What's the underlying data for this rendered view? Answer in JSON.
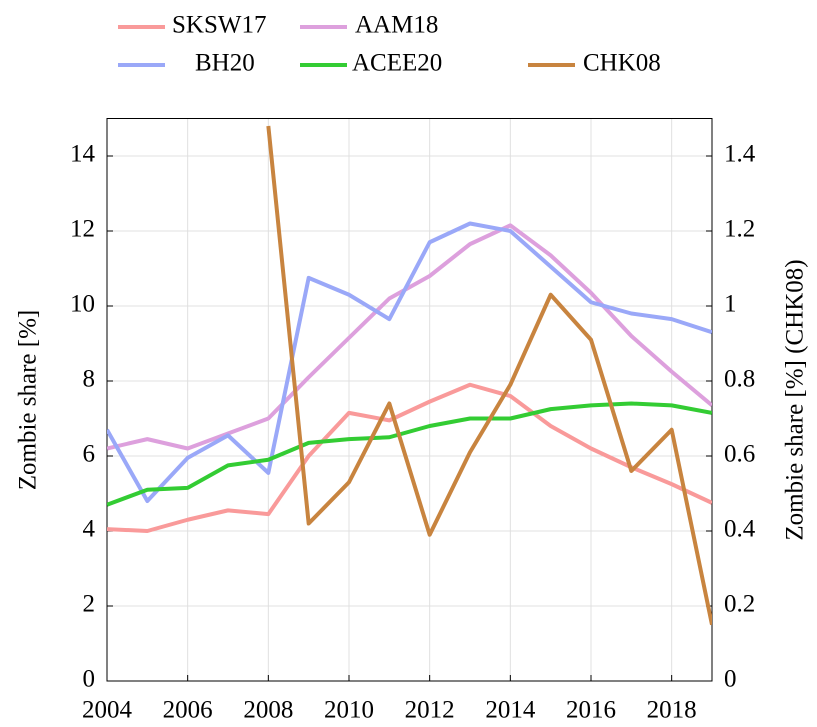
{
  "chart_data": {
    "type": "line",
    "x": [
      2004,
      2005,
      2006,
      2007,
      2008,
      2009,
      2010,
      2011,
      2012,
      2013,
      2014,
      2015,
      2016,
      2017,
      2018,
      2019
    ],
    "series": [
      {
        "name": "SKSW17",
        "color": "#f99a9a",
        "values": [
          4.05,
          4.0,
          4.3,
          4.55,
          4.45,
          6.0,
          7.15,
          6.95,
          7.45,
          7.9,
          7.6,
          6.8,
          6.2,
          5.7,
          5.25,
          4.75
        ]
      },
      {
        "name": "AAM18",
        "color": "#dda0dd",
        "values": [
          6.2,
          6.45,
          6.2,
          6.6,
          7.0,
          8.1,
          9.15,
          10.2,
          10.8,
          11.65,
          12.15,
          11.35,
          10.35,
          9.2,
          8.25,
          7.35
        ]
      },
      {
        "name": "BH20",
        "color": "#9aa8f8",
        "values": [
          6.7,
          4.8,
          5.95,
          6.55,
          5.55,
          10.75,
          10.3,
          9.65,
          11.7,
          12.2,
          12.0,
          11.05,
          10.1,
          9.8,
          9.65,
          9.3
        ]
      },
      {
        "name": "ACEE20",
        "color": "#33cc33",
        "values": [
          4.7,
          5.1,
          5.15,
          5.75,
          5.9,
          6.35,
          6.45,
          6.5,
          6.8,
          7.0,
          7.0,
          7.25,
          7.35,
          7.4,
          7.35,
          7.15
        ]
      },
      {
        "name": "CHK08",
        "color": "#c8843f",
        "axis": "y2",
        "values": [
          null,
          null,
          null,
          null,
          1.48,
          0.42,
          0.53,
          0.74,
          0.39,
          0.61,
          0.79,
          1.03,
          0.91,
          0.56,
          0.67,
          0.15
        ]
      }
    ],
    "ylabel": "Zombie share [%]",
    "y2label": "Zombie share [%] (CHK08)",
    "xlim": [
      2004,
      2019
    ],
    "xticks": [
      2004,
      2006,
      2008,
      2010,
      2012,
      2014,
      2016,
      2018
    ],
    "ylim": [
      0,
      15
    ],
    "yticks": [
      0,
      2,
      4,
      6,
      8,
      10,
      12,
      14
    ],
    "y2lim": [
      0,
      1.5
    ],
    "y2ticks": [
      0,
      0.2,
      0.4,
      0.6,
      0.8,
      1,
      1.2,
      1.4
    ],
    "grid": true
  }
}
